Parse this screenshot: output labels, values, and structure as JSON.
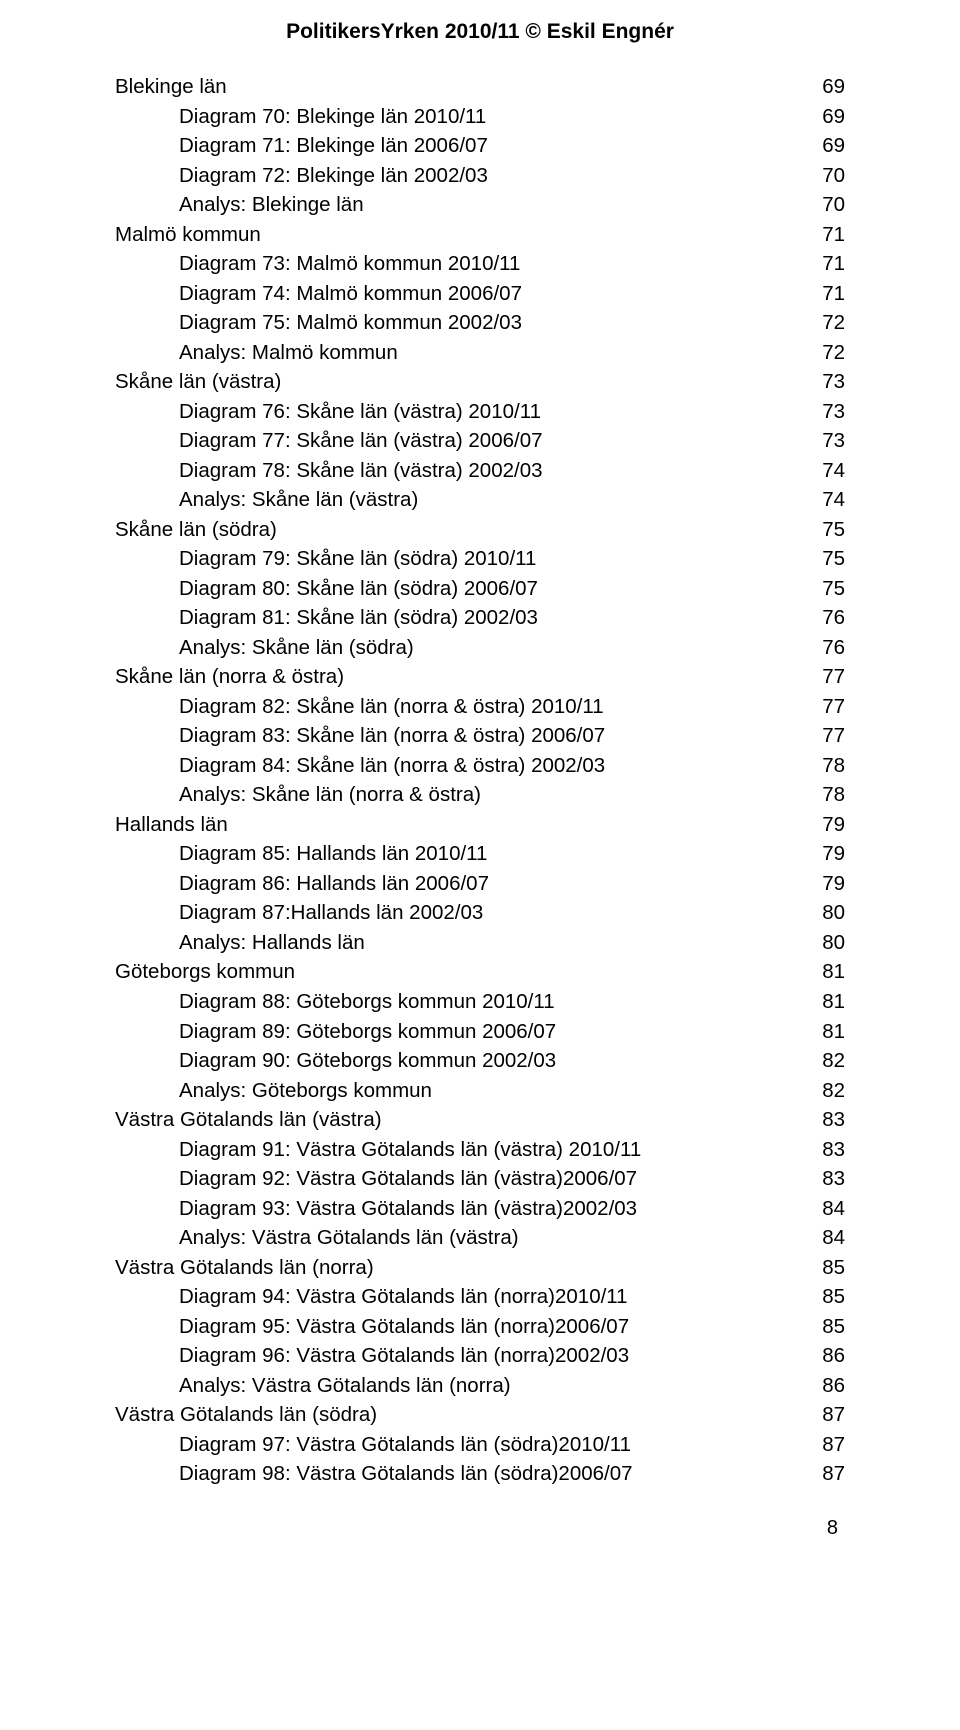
{
  "header": "PolitikersYrken 2010/11 © Eskil Engnér",
  "page_number": "8",
  "toc": [
    {
      "type": "section",
      "label": "Blekinge län",
      "page": "69"
    },
    {
      "type": "entry",
      "label": "Diagram 70: Blekinge län 2010/11",
      "page": "69"
    },
    {
      "type": "entry",
      "label": "Diagram 71: Blekinge län 2006/07",
      "page": "69"
    },
    {
      "type": "entry",
      "label": "Diagram 72: Blekinge län 2002/03",
      "page": "70"
    },
    {
      "type": "entry",
      "label": "Analys: Blekinge län",
      "page": "70"
    },
    {
      "type": "section",
      "label": "Malmö kommun",
      "page": "71"
    },
    {
      "type": "entry",
      "label": "Diagram 73: Malmö kommun 2010/11",
      "page": "71"
    },
    {
      "type": "entry",
      "label": "Diagram 74: Malmö kommun 2006/07",
      "page": "71"
    },
    {
      "type": "entry",
      "label": "Diagram 75: Malmö kommun 2002/03",
      "page": "72"
    },
    {
      "type": "entry",
      "label": "Analys: Malmö kommun",
      "page": "72"
    },
    {
      "type": "section",
      "label": "Skåne län (västra)",
      "page": "73"
    },
    {
      "type": "entry",
      "label": "Diagram 76: Skåne län (västra) 2010/11",
      "page": "73"
    },
    {
      "type": "entry",
      "label": "Diagram 77: Skåne län (västra) 2006/07",
      "page": "73"
    },
    {
      "type": "entry",
      "label": "Diagram 78: Skåne län (västra) 2002/03",
      "page": "74"
    },
    {
      "type": "entry",
      "label": "Analys: Skåne län (västra)",
      "page": "74"
    },
    {
      "type": "section",
      "label": "Skåne län (södra)",
      "page": "75"
    },
    {
      "type": "entry",
      "label": "Diagram 79: Skåne län (södra) 2010/11",
      "page": "75"
    },
    {
      "type": "entry",
      "label": "Diagram 80: Skåne län (södra) 2006/07",
      "page": "75"
    },
    {
      "type": "entry",
      "label": "Diagram 81: Skåne län (södra) 2002/03",
      "page": "76"
    },
    {
      "type": "entry",
      "label": "Analys: Skåne län (södra)",
      "page": "76"
    },
    {
      "type": "section",
      "label": "Skåne län (norra & östra)",
      "page": "77"
    },
    {
      "type": "entry",
      "label": "Diagram 82: Skåne län (norra & östra) 2010/11",
      "page": "77"
    },
    {
      "type": "entry",
      "label": "Diagram 83: Skåne län (norra & östra) 2006/07",
      "page": "77"
    },
    {
      "type": "entry",
      "label": "Diagram 84: Skåne län (norra & östra) 2002/03",
      "page": "78"
    },
    {
      "type": "entry",
      "label": "Analys: Skåne län (norra & östra)",
      "page": "78"
    },
    {
      "type": "section",
      "label": "Hallands län",
      "page": "79"
    },
    {
      "type": "entry",
      "label": "Diagram 85: Hallands län 2010/11",
      "page": "79"
    },
    {
      "type": "entry",
      "label": "Diagram 86: Hallands län 2006/07",
      "page": "79"
    },
    {
      "type": "entry",
      "label": "Diagram 87:Hallands län 2002/03",
      "page": "80"
    },
    {
      "type": "entry",
      "label": "Analys: Hallands län",
      "page": "80"
    },
    {
      "type": "section",
      "label": "Göteborgs kommun",
      "page": "81"
    },
    {
      "type": "entry",
      "label": "Diagram 88: Göteborgs kommun 2010/11",
      "page": "81"
    },
    {
      "type": "entry",
      "label": "Diagram 89: Göteborgs kommun 2006/07",
      "page": "81"
    },
    {
      "type": "entry",
      "label": "Diagram 90: Göteborgs kommun 2002/03",
      "page": "82"
    },
    {
      "type": "entry",
      "label": "Analys: Göteborgs kommun",
      "page": "82"
    },
    {
      "type": "section",
      "label": "Västra Götalands län (västra)",
      "page": "83"
    },
    {
      "type": "entry",
      "label": "Diagram 91: Västra Götalands län (västra) 2010/11",
      "page": "83"
    },
    {
      "type": "entry",
      "label": "Diagram 92: Västra Götalands län (västra)2006/07",
      "page": "83"
    },
    {
      "type": "entry",
      "label": "Diagram 93: Västra Götalands län (västra)2002/03",
      "page": "84"
    },
    {
      "type": "entry",
      "label": "Analys: Västra Götalands län (västra)",
      "page": "84"
    },
    {
      "type": "section",
      "label": "Västra Götalands län (norra)",
      "page": "85"
    },
    {
      "type": "entry",
      "label": "Diagram 94: Västra Götalands län (norra)2010/11",
      "page": "85"
    },
    {
      "type": "entry",
      "label": "Diagram 95: Västra Götalands län (norra)2006/07",
      "page": "85"
    },
    {
      "type": "entry",
      "label": "Diagram 96: Västra Götalands län (norra)2002/03",
      "page": "86"
    },
    {
      "type": "entry",
      "label": "Analys: Västra Götalands län (norra)",
      "page": "86"
    },
    {
      "type": "section",
      "label": "Västra Götalands län (södra)",
      "page": "87"
    },
    {
      "type": "entry",
      "label": "Diagram 97: Västra Götalands län (södra)2010/11",
      "page": "87"
    },
    {
      "type": "entry",
      "label": "Diagram 98: Västra Götalands län (södra)2006/07",
      "page": "87"
    }
  ]
}
